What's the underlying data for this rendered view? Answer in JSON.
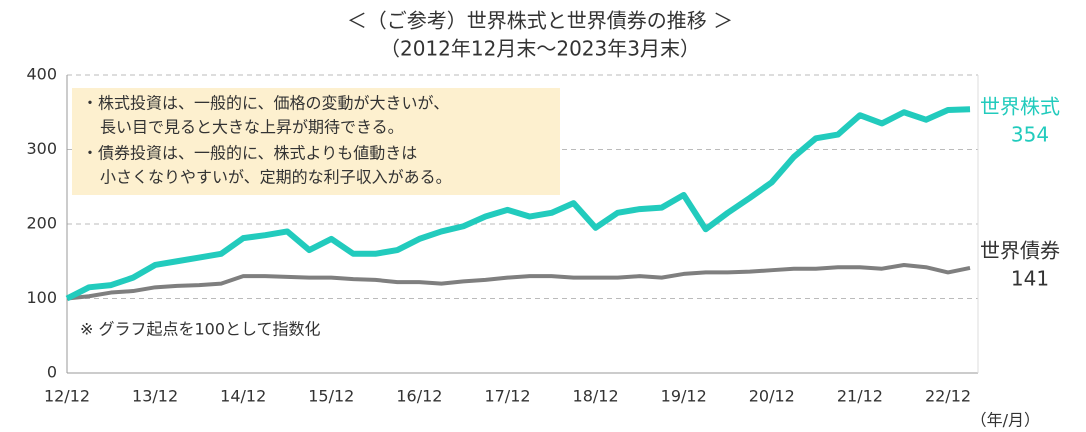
{
  "chart_data": {
    "type": "line",
    "title": "＜（ご参考）世界株式と世界債券の推移 ＞",
    "subtitle": "（2012年12月末～2023年3月末）",
    "x_unit": "（年/月）",
    "categories": [
      "12/12",
      null,
      null,
      null,
      "13/12",
      null,
      null,
      null,
      "14/12",
      null,
      null,
      null,
      "15/12",
      null,
      null,
      null,
      "16/12",
      null,
      null,
      null,
      "17/12",
      null,
      null,
      null,
      "18/12",
      null,
      null,
      null,
      "19/12",
      null,
      null,
      null,
      "20/12",
      null,
      null,
      null,
      "21/12",
      null,
      null,
      null,
      "22/12",
      null
    ],
    "series": [
      {
        "name": "世界株式",
        "color": "#22cbbd",
        "values": [
          100,
          115,
          118,
          128,
          145,
          150,
          155,
          160,
          181,
          185,
          190,
          165,
          180,
          160,
          160,
          165,
          180,
          190,
          197,
          210,
          219,
          210,
          215,
          228,
          195,
          215,
          220,
          222,
          239,
          193,
          215,
          235,
          256,
          290,
          315,
          320,
          346,
          335,
          350,
          340,
          353,
          354
        ]
      },
      {
        "name": "世界債券",
        "color": "#7f7f7f",
        "values": [
          100,
          103,
          108,
          110,
          115,
          117,
          118,
          120,
          130,
          130,
          129,
          128,
          128,
          126,
          125,
          122,
          122,
          120,
          123,
          125,
          128,
          130,
          130,
          128,
          128,
          128,
          130,
          128,
          133,
          135,
          135,
          136,
          138,
          140,
          140,
          142,
          142,
          140,
          145,
          142,
          135,
          141
        ]
      }
    ],
    "ylim": [
      0,
      400
    ],
    "yticks": [
      0,
      100,
      200,
      300,
      400
    ],
    "grid": true,
    "annotations": [
      "・株式投資は、一般的に、価格の変動が大きいが、",
      "長い目で見ると大きな上昇が期待できる。",
      "・債券投資は、一般的に、株式よりも値動きは",
      "小さくなりやすいが、定期的な利子収入がある。"
    ],
    "footnote": "※ グラフ起点を100として指数化"
  }
}
